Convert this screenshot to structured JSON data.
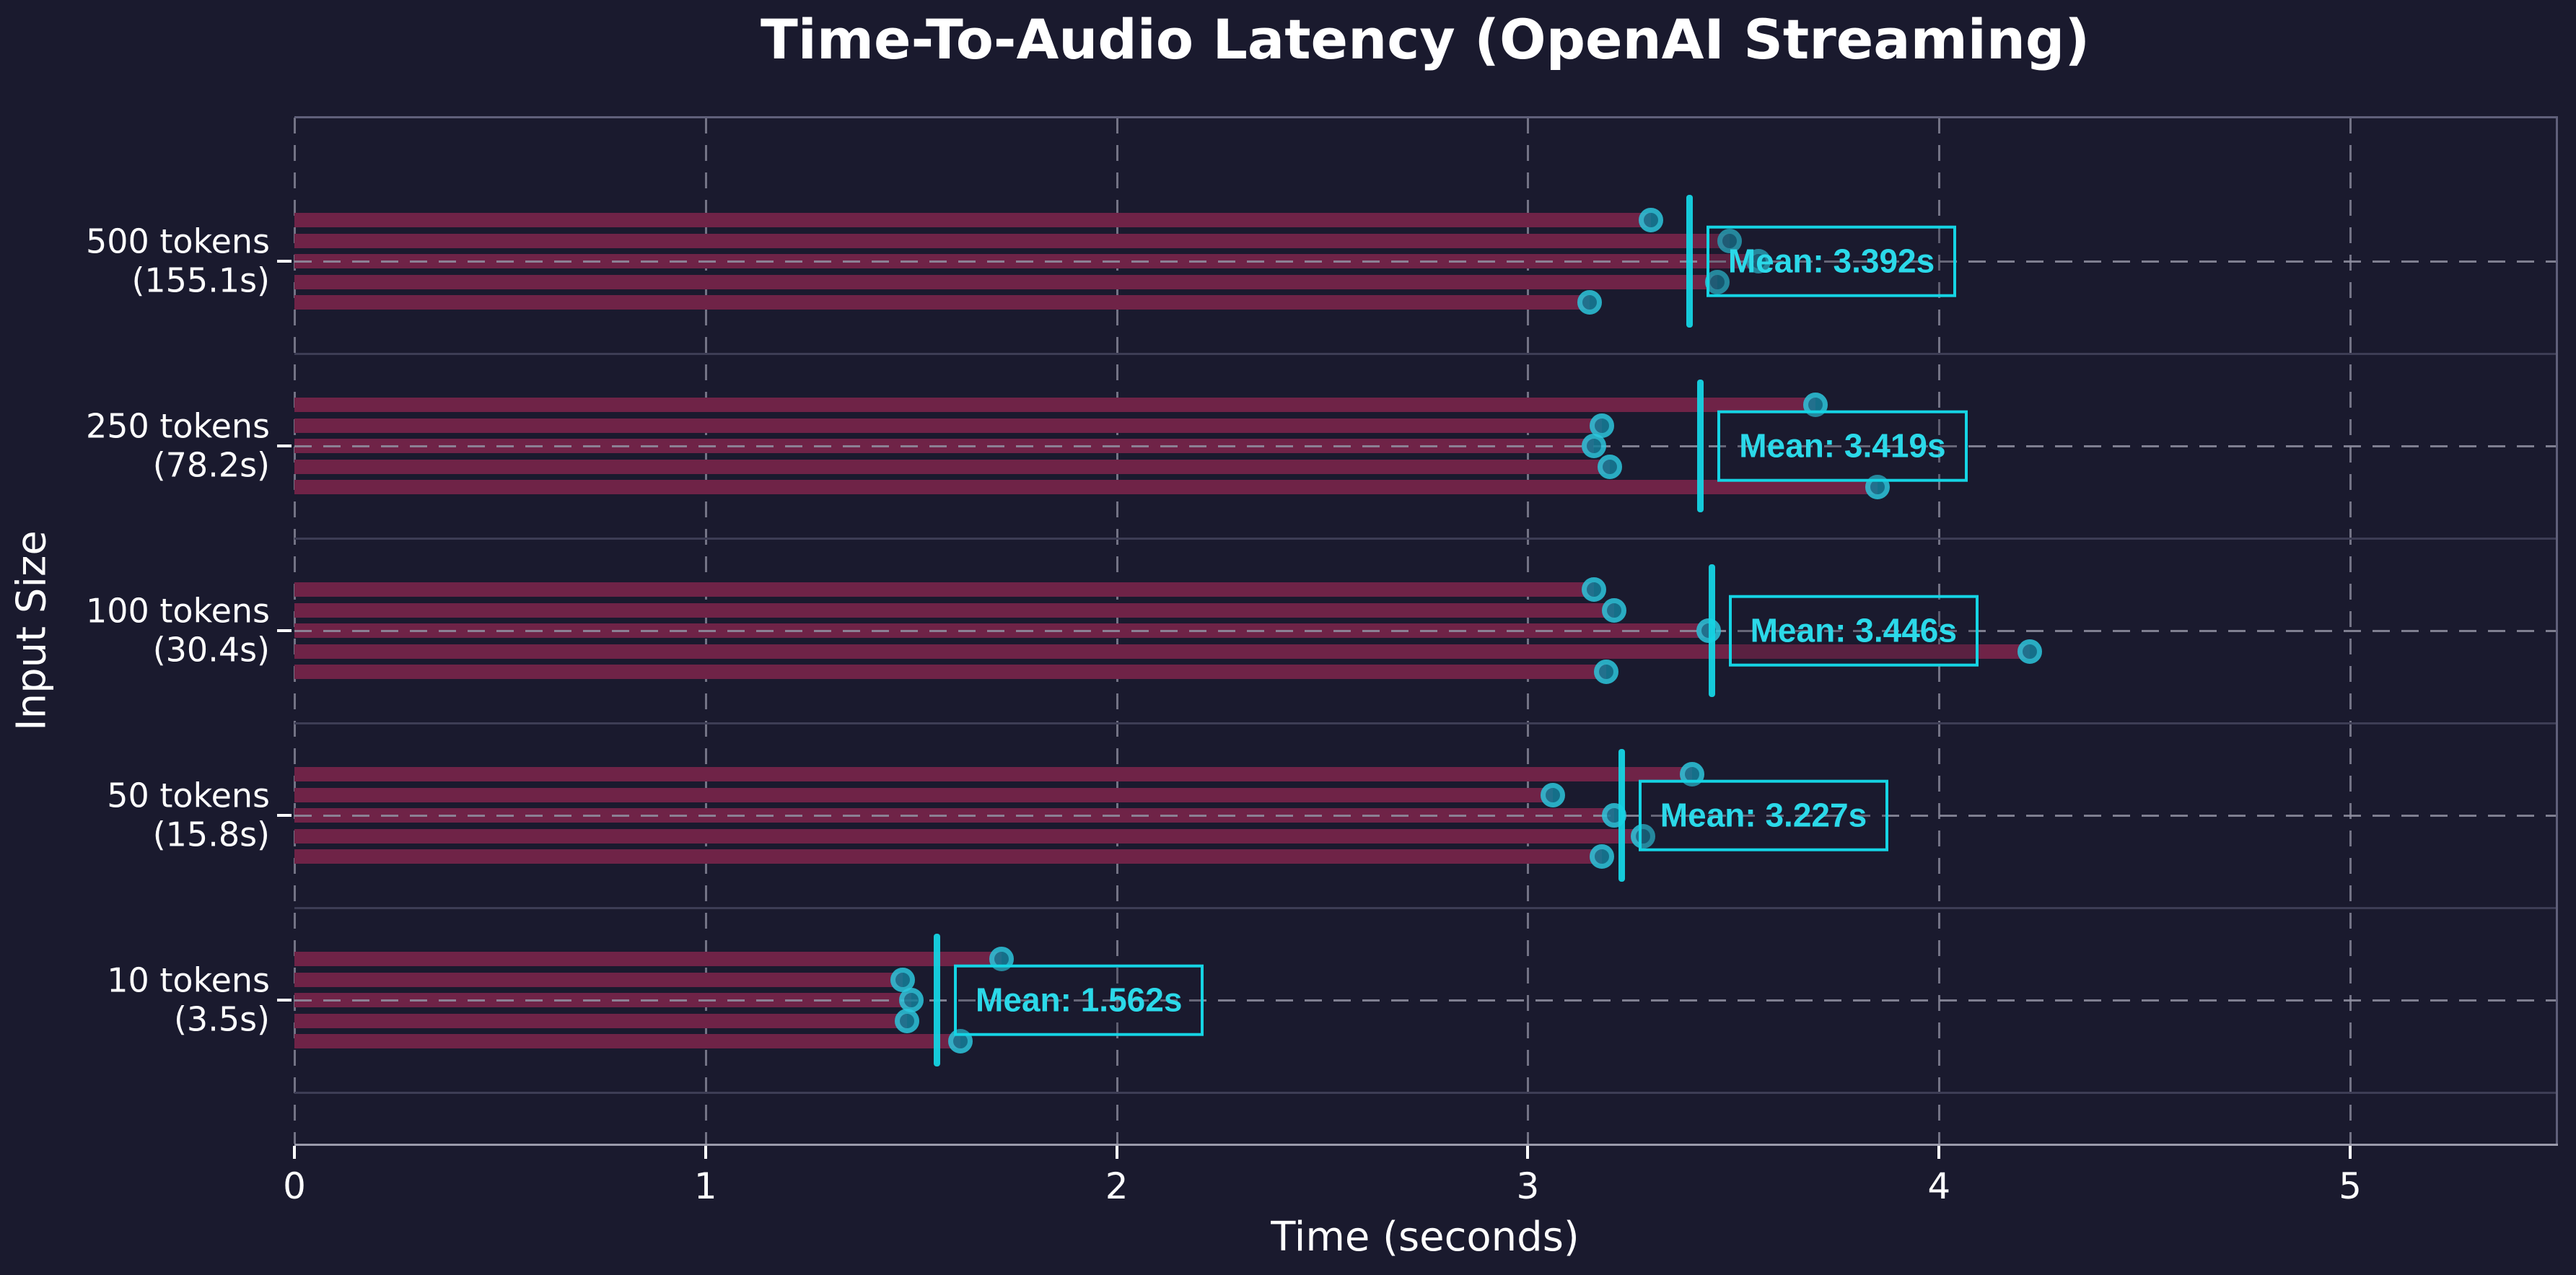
{
  "title": "Time-To-Audio Latency (OpenAI Streaming)",
  "chart_data": {
    "type": "bar",
    "orientation": "horizontal",
    "title": "Time-To-Audio Latency (OpenAI Streaming)",
    "xlabel": "Time (seconds)",
    "ylabel": "Input Size",
    "xlim": [
      0,
      5.5
    ],
    "xticks": [
      0,
      1,
      2,
      3,
      4,
      5
    ],
    "grid": {
      "vertical_dashed_at_xticks": true,
      "horizontal_dashed_at_group_centers": true,
      "solid_group_separators": true
    },
    "legend": null,
    "runs_per_group": 5,
    "categories": [
      {
        "label": "500 tokens",
        "sublabel": "(155.1s)",
        "runs": [
          3.3,
          3.49,
          3.56,
          3.46,
          3.15
        ],
        "mean": 3.392,
        "mean_label": "Mean: 3.392s"
      },
      {
        "label": "250 tokens",
        "sublabel": "(78.2s)",
        "runs": [
          3.7,
          3.18,
          3.16,
          3.2,
          3.85
        ],
        "mean": 3.419,
        "mean_label": "Mean: 3.419s"
      },
      {
        "label": "100 tokens",
        "sublabel": "(30.4s)",
        "runs": [
          3.16,
          3.21,
          3.44,
          4.22,
          3.19
        ],
        "mean": 3.446,
        "mean_label": "Mean: 3.446s"
      },
      {
        "label": "50 tokens",
        "sublabel": "(15.8s)",
        "runs": [
          3.4,
          3.06,
          3.21,
          3.28,
          3.18
        ],
        "mean": 3.227,
        "mean_label": "Mean: 3.227s"
      },
      {
        "label": "10 tokens",
        "sublabel": "(3.5s)",
        "runs": [
          1.72,
          1.48,
          1.5,
          1.49,
          1.62
        ],
        "mean": 1.562,
        "mean_label": "Mean: 1.562s"
      }
    ]
  },
  "colors": {
    "background": "#1a1a2e",
    "bar": "#6f2347",
    "dot_fill": "#157e9a",
    "dot_ring": "#2cc6dc",
    "mean_line": "#15d4e4",
    "mean_text": "#2bd9e9",
    "grid_dashed": "#9191a2",
    "group_separator": "#3d3d55",
    "spine": "#60607a",
    "axis_line": "#9b9bab",
    "text": "#ffffff"
  }
}
